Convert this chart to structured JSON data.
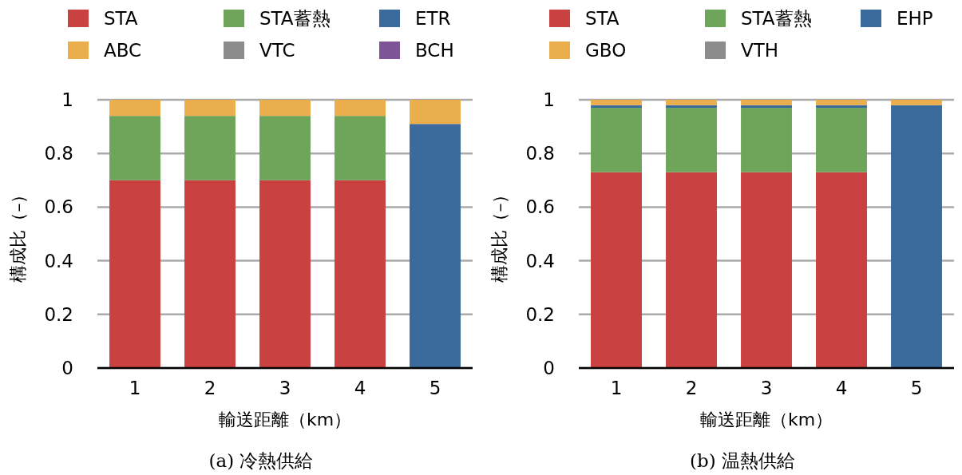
{
  "chart_data": [
    {
      "type": "bar",
      "stacked": true,
      "categories": [
        "1",
        "2",
        "3",
        "4",
        "5"
      ],
      "xlabel": "輸送距離（km）",
      "ylabel": "構成比（–）",
      "ylim": [
        0,
        1
      ],
      "yticks": [
        0,
        0.2,
        0.4,
        0.6,
        0.8,
        1
      ],
      "grid": "y",
      "legend": "top",
      "annotations": [
        "(a) 冷熱供給"
      ],
      "series": [
        {
          "name": "STA",
          "color": "#c94140",
          "values": [
            0.7,
            0.7,
            0.7,
            0.7,
            0
          ]
        },
        {
          "name": "STA蓄熱",
          "color": "#6ea55a",
          "values": [
            0.24,
            0.24,
            0.24,
            0.24,
            0
          ]
        },
        {
          "name": "ETR",
          "color": "#3b6b9c",
          "values": [
            0,
            0,
            0,
            0,
            0.91
          ]
        },
        {
          "name": "ABC",
          "color": "#ebae4c",
          "values": [
            0.06,
            0.06,
            0.06,
            0.06,
            0.09
          ]
        },
        {
          "name": "VTC",
          "color": "#8c8c8c",
          "values": [
            0,
            0,
            0,
            0,
            0
          ]
        },
        {
          "name": "BCH",
          "color": "#7d5495",
          "values": [
            0,
            0,
            0,
            0,
            0
          ]
        }
      ]
    },
    {
      "type": "bar",
      "stacked": true,
      "categories": [
        "1",
        "2",
        "3",
        "4",
        "5"
      ],
      "xlabel": "輸送距離（km）",
      "ylabel": "構成比（–）",
      "ylim": [
        0,
        1
      ],
      "yticks": [
        0,
        0.2,
        0.4,
        0.6,
        0.8,
        1
      ],
      "grid": "y",
      "legend": "top",
      "annotations": [
        "(b) 温熱供給"
      ],
      "series": [
        {
          "name": "STA",
          "color": "#c94140",
          "values": [
            0.73,
            0.73,
            0.73,
            0.73,
            0
          ]
        },
        {
          "name": "STA蓄熱",
          "color": "#6ea55a",
          "values": [
            0.24,
            0.24,
            0.24,
            0.24,
            0
          ]
        },
        {
          "name": "EHP",
          "color": "#3b6b9c",
          "values": [
            0.01,
            0.01,
            0.01,
            0.01,
            0.98
          ]
        },
        {
          "name": "GBO",
          "color": "#ebae4c",
          "values": [
            0.02,
            0.02,
            0.02,
            0.02,
            0.02
          ]
        },
        {
          "name": "VTH",
          "color": "#8c8c8c",
          "values": [
            0,
            0,
            0,
            0,
            0
          ]
        }
      ]
    }
  ]
}
